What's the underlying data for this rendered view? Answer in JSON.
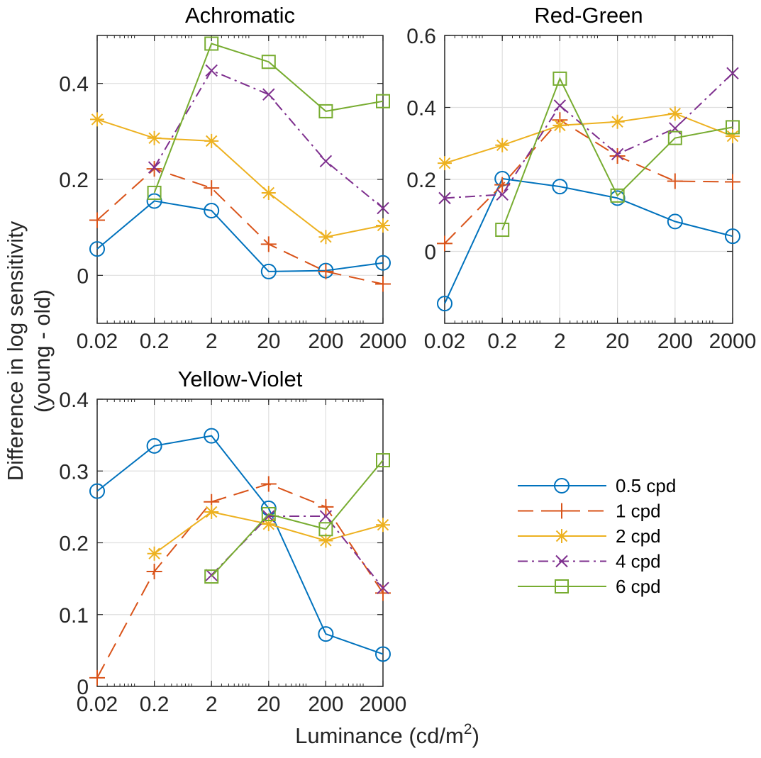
{
  "figure": {
    "ylabel": [
      "Difference in log sensitivity",
      "(young - old)"
    ],
    "xlabel": "Luminance (cd/m",
    "xlabel_superscript": "2",
    "xlabel_suffix": ")"
  },
  "legend": {
    "entries": [
      "0.5 cpd",
      "1 cpd",
      "2 cpd",
      "4 cpd",
      "6 cpd"
    ]
  },
  "style": {
    "colors": [
      "#0072BD",
      "#D95319",
      "#EDB120",
      "#7E2F8E",
      "#77AC30"
    ],
    "markers": [
      "circle",
      "plus",
      "asterisk",
      "x-cross",
      "square"
    ],
    "dashes": [
      "solid",
      "dashed",
      "solid",
      "dash-dot",
      "solid"
    ]
  },
  "chart_data": [
    {
      "type": "line",
      "title": "Achromatic",
      "x_scale": "log",
      "xlim": [
        0.02,
        2000
      ],
      "xticks": [
        0.02,
        0.2,
        2,
        20,
        200,
        2000
      ],
      "xtick_labels": [
        "0.02",
        "0.2",
        "2",
        "20",
        "200",
        "2000"
      ],
      "ylim": [
        -0.1,
        0.5
      ],
      "yticks": [
        0,
        0.2,
        0.4
      ],
      "ytick_labels": [
        "0",
        "0.2",
        "0.4"
      ],
      "grid": true,
      "x": [
        0.02,
        0.2,
        2,
        20,
        200,
        2000
      ],
      "series": [
        {
          "legend_index": 0,
          "values": [
            0.055,
            0.155,
            0.135,
            0.008,
            0.01,
            0.026
          ]
        },
        {
          "legend_index": 1,
          "values": [
            0.115,
            0.222,
            0.182,
            0.065,
            0.008,
            -0.018
          ]
        },
        {
          "legend_index": 2,
          "values": [
            0.325,
            0.286,
            0.28,
            0.172,
            0.08,
            0.104
          ]
        },
        {
          "legend_index": 3,
          "values": [
            null,
            0.225,
            0.427,
            0.377,
            0.238,
            0.14
          ]
        },
        {
          "legend_index": 4,
          "values": [
            null,
            0.172,
            0.483,
            0.445,
            0.342,
            0.363
          ]
        }
      ]
    },
    {
      "type": "line",
      "title": "Red-Green",
      "x_scale": "log",
      "xlim": [
        0.02,
        2000
      ],
      "xticks": [
        0.02,
        0.2,
        2,
        20,
        200,
        2000
      ],
      "xtick_labels": [
        "0.02",
        "0.2",
        "2",
        "20",
        "200",
        "2000"
      ],
      "ylim": [
        -0.2,
        0.6
      ],
      "yticks": [
        0,
        0.2,
        0.4,
        0.6
      ],
      "ytick_labels": [
        "0",
        "0.2",
        "0.4",
        "0.6"
      ],
      "grid": true,
      "x": [
        0.02,
        0.2,
        2,
        20,
        200,
        2000
      ],
      "series": [
        {
          "legend_index": 0,
          "values": [
            -0.145,
            0.202,
            0.18,
            0.148,
            0.083,
            0.042
          ]
        },
        {
          "legend_index": 1,
          "values": [
            0.022,
            0.185,
            0.365,
            0.265,
            0.195,
            0.193
          ]
        },
        {
          "legend_index": 2,
          "values": [
            0.245,
            0.295,
            0.35,
            0.36,
            0.383,
            0.32
          ]
        },
        {
          "legend_index": 3,
          "values": [
            0.148,
            0.158,
            0.405,
            0.27,
            0.342,
            0.495
          ]
        },
        {
          "legend_index": 4,
          "values": [
            null,
            0.06,
            0.48,
            0.155,
            0.315,
            0.345
          ]
        }
      ]
    },
    {
      "type": "line",
      "title": "Yellow-Violet",
      "x_scale": "log",
      "xlim": [
        0.02,
        2000
      ],
      "xticks": [
        0.02,
        0.2,
        2,
        20,
        200,
        2000
      ],
      "xtick_labels": [
        "0.02",
        "0.2",
        "2",
        "20",
        "200",
        "2000"
      ],
      "ylim": [
        0,
        0.4
      ],
      "yticks": [
        0,
        0.1,
        0.2,
        0.3,
        0.4
      ],
      "ytick_labels": [
        "0",
        "0.1",
        "0.2",
        "0.3",
        "0.4"
      ],
      "grid": true,
      "x": [
        0.02,
        0.2,
        2,
        20,
        200,
        2000
      ],
      "series": [
        {
          "legend_index": 0,
          "values": [
            0.272,
            0.335,
            0.349,
            0.248,
            0.073,
            0.045
          ]
        },
        {
          "legend_index": 1,
          "values": [
            0.012,
            0.16,
            0.257,
            0.282,
            0.25,
            0.13
          ]
        },
        {
          "legend_index": 2,
          "values": [
            null,
            0.185,
            0.243,
            0.226,
            0.203,
            0.225
          ]
        },
        {
          "legend_index": 3,
          "values": [
            null,
            null,
            0.155,
            0.237,
            0.237,
            0.137
          ]
        },
        {
          "legend_index": 4,
          "values": [
            null,
            null,
            0.153,
            0.24,
            0.219,
            0.315
          ]
        }
      ]
    }
  ]
}
